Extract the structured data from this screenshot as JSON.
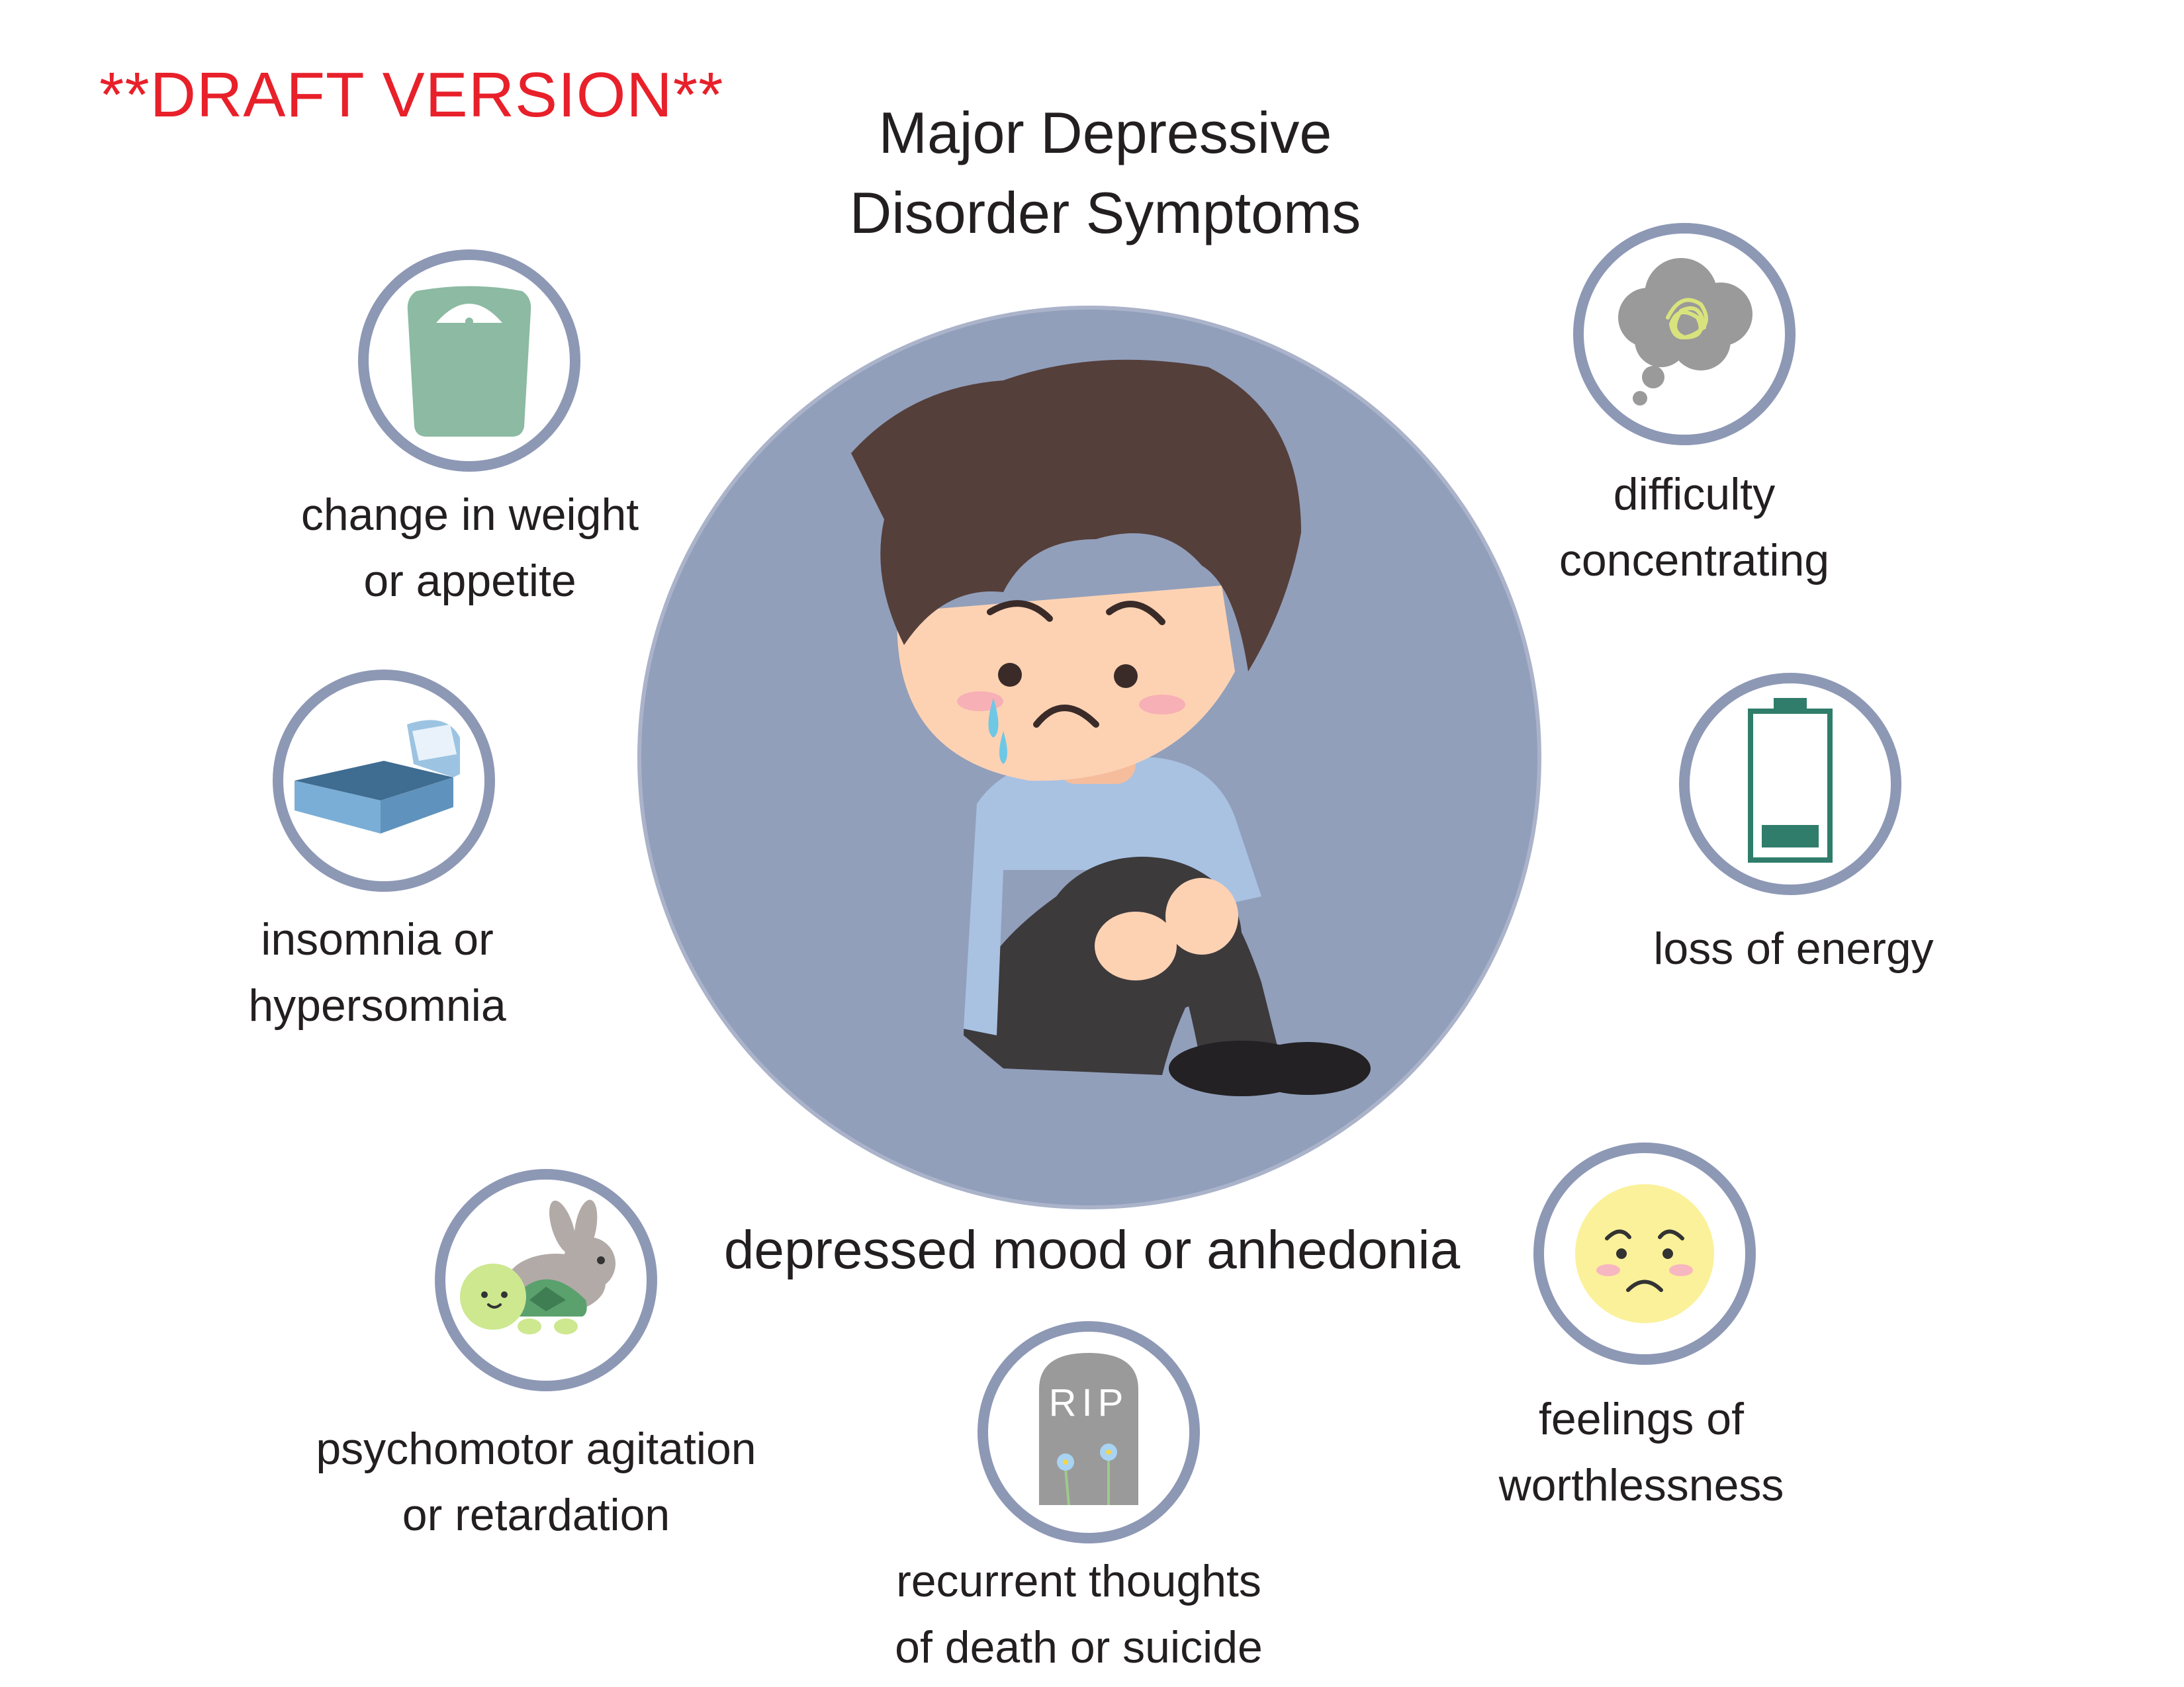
{
  "draft_label": "**DRAFT VERSION**",
  "title": {
    "line1": "Major Depressive",
    "line2": "Disorder Symptoms"
  },
  "central_symptom": "depressed mood or anhedonia",
  "symptoms": {
    "weight": {
      "line1": "change in weight",
      "line2": "or appetite",
      "icon": "scale-icon"
    },
    "sleep": {
      "line1": "insomnia or",
      "line2": "hypersomnia",
      "icon": "bed-icon"
    },
    "psychomotor": {
      "line1": "psychomotor agitation",
      "line2": "or retardation",
      "icon": "turtle-rabbit-icon"
    },
    "death": {
      "line1": "recurrent thoughts",
      "line2": "of death or suicide",
      "icon": "tombstone-icon",
      "tombstone_text": "RIP"
    },
    "worthless": {
      "line1": "feelings of",
      "line2": "worthlessness",
      "icon": "sad-face-icon"
    },
    "energy": {
      "line1": "loss of energy",
      "icon": "low-battery-icon"
    },
    "concentration": {
      "line1": "difficulty",
      "line2": "concentrating",
      "icon": "thought-cloud-icon"
    }
  },
  "colors": {
    "draft_red": "#e8202a",
    "ring": "#8d98b5",
    "central_circle": "#919fbb",
    "text": "#231f20"
  }
}
